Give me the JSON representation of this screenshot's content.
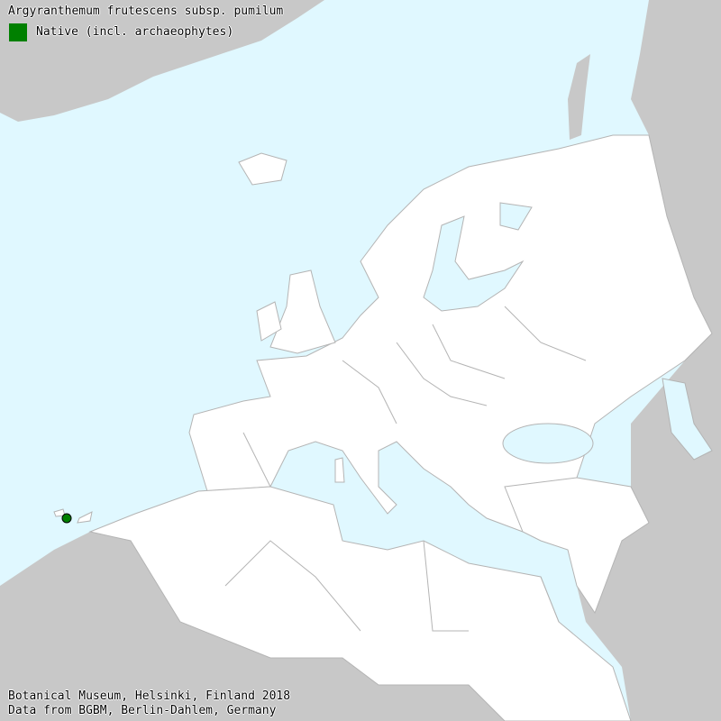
{
  "title": "Argyranthemum frutescens subsp. pumilum",
  "legend": [
    {
      "label": "Native (incl. archaeophytes)",
      "color": "#008000"
    }
  ],
  "credits": {
    "line1": "Botanical Museum, Helsinki, Finland 2018",
    "line2": "Data from BGBM, Berlin-Dahlem, Germany"
  },
  "colors": {
    "sea": "#e0f8ff",
    "mapped_land": "#ffffff",
    "other_land": "#c8c8c8",
    "borders": "#b4b4b4"
  },
  "occurrences": [
    {
      "status": "Native (incl. archaeophytes)",
      "location": "Canary Islands"
    }
  ]
}
